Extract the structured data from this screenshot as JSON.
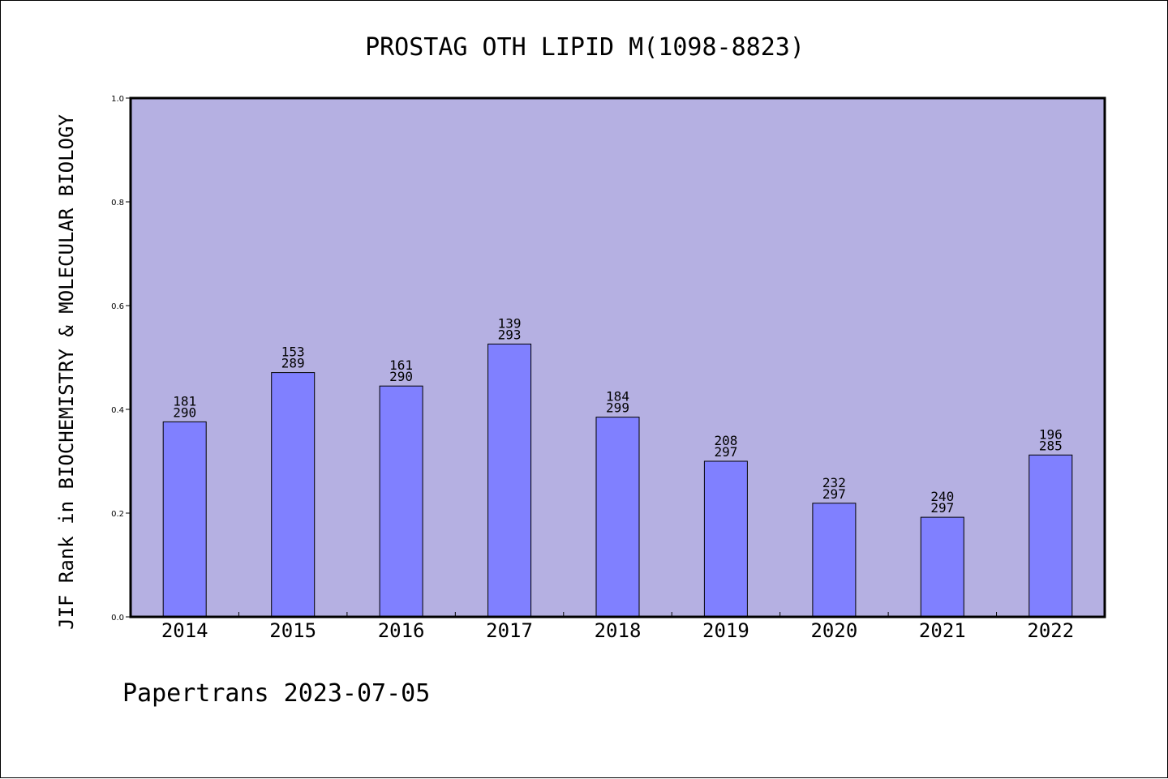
{
  "chart_data": {
    "type": "bar",
    "title": "PROSTAG OTH LIPID M(1098-8823)",
    "ylabel": "JIF Rank in BIOCHEMISTRY & MOLECULAR BIOLOGY",
    "xlabel": "",
    "ylim": [
      0.0,
      1.0
    ],
    "yticks": [
      "0.0",
      "0.2",
      "0.4",
      "0.6",
      "0.8",
      "1.0"
    ],
    "categories": [
      "2014",
      "2015",
      "2016",
      "2017",
      "2018",
      "2019",
      "2020",
      "2021",
      "2022"
    ],
    "values": [
      0.376,
      0.471,
      0.445,
      0.526,
      0.385,
      0.3,
      0.219,
      0.192,
      0.312
    ],
    "rank_labels": [
      "181",
      "153",
      "161",
      "139",
      "184",
      "208",
      "232",
      "240",
      "196"
    ],
    "total_labels": [
      "290",
      "289",
      "290",
      "293",
      "299",
      "297",
      "297",
      "297",
      "285"
    ],
    "grid": false,
    "legend": "none",
    "colors": {
      "plot_background": "#b5b0e2",
      "bar_fill": "#8080ff",
      "bar_stroke": "#000000",
      "axis": "#000000"
    }
  },
  "footer": {
    "text": "Papertrans 2023-07-05"
  }
}
